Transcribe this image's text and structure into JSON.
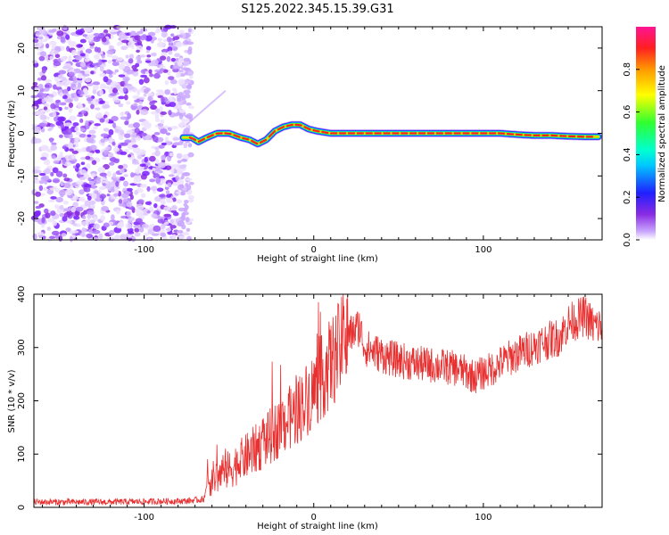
{
  "title": "S125.2022.345.15.39.G31",
  "chart_data": [
    {
      "type": "heatmap",
      "name": "spectrogram",
      "xlabel": "Height of straight line (km)",
      "ylabel": "Frequency (Hz)",
      "xlim": [
        -165,
        170
      ],
      "ylim": [
        -25,
        25
      ],
      "xticks": [
        -100,
        0,
        100
      ],
      "yticks": [
        -20,
        -10,
        0,
        10,
        20
      ],
      "grid": false,
      "colorbar": {
        "label": "Normalized spectral amplitude",
        "range": [
          0,
          1
        ],
        "ticks": [
          0.0,
          0.2,
          0.4,
          0.6,
          0.8
        ],
        "colormap": "hsv-purple-blue-cyan-green-yellow-orange-red-pink"
      },
      "noise_region_x": [
        -165,
        -75
      ],
      "signal_track": {
        "x": [
          -77,
          -72,
          -68,
          -63,
          -57,
          -50,
          -43,
          -38,
          -33,
          -28,
          -23,
          -18,
          -13,
          -8,
          -3,
          2,
          10,
          20,
          40,
          60,
          80,
          100,
          110,
          120,
          130,
          140,
          150,
          160,
          168
        ],
        "y": [
          -1,
          -1,
          -2,
          -1,
          0,
          0,
          -1,
          -1.5,
          -2.5,
          -1.5,
          0.5,
          1.5,
          2,
          2,
          1,
          0.5,
          0,
          0,
          0,
          0,
          0,
          0,
          0,
          -0.3,
          -0.5,
          -0.5,
          -0.7,
          -0.8,
          -0.8
        ]
      }
    },
    {
      "type": "line",
      "name": "snr",
      "xlabel": "Height of straight line (km)",
      "ylabel": "SNR (10 * v/v)",
      "xlim": [
        -165,
        170
      ],
      "ylim": [
        0,
        400
      ],
      "xticks": [
        -100,
        0,
        100
      ],
      "yticks": [
        0,
        100,
        200,
        300,
        400
      ],
      "grid": false,
      "line_color": "#e83030",
      "trend": {
        "x": [
          -165,
          -120,
          -75,
          -65,
          -62,
          -50,
          -30,
          -10,
          0,
          10,
          20,
          27,
          30,
          45,
          60,
          75,
          85,
          95,
          105,
          115,
          125,
          135,
          145,
          150,
          160,
          165,
          170
        ],
        "y": [
          10,
          10,
          12,
          15,
          50,
          70,
          120,
          180,
          220,
          270,
          320,
          340,
          300,
          280,
          270,
          265,
          260,
          245,
          260,
          280,
          295,
          310,
          320,
          345,
          360,
          340,
          340
        ]
      }
    }
  ]
}
